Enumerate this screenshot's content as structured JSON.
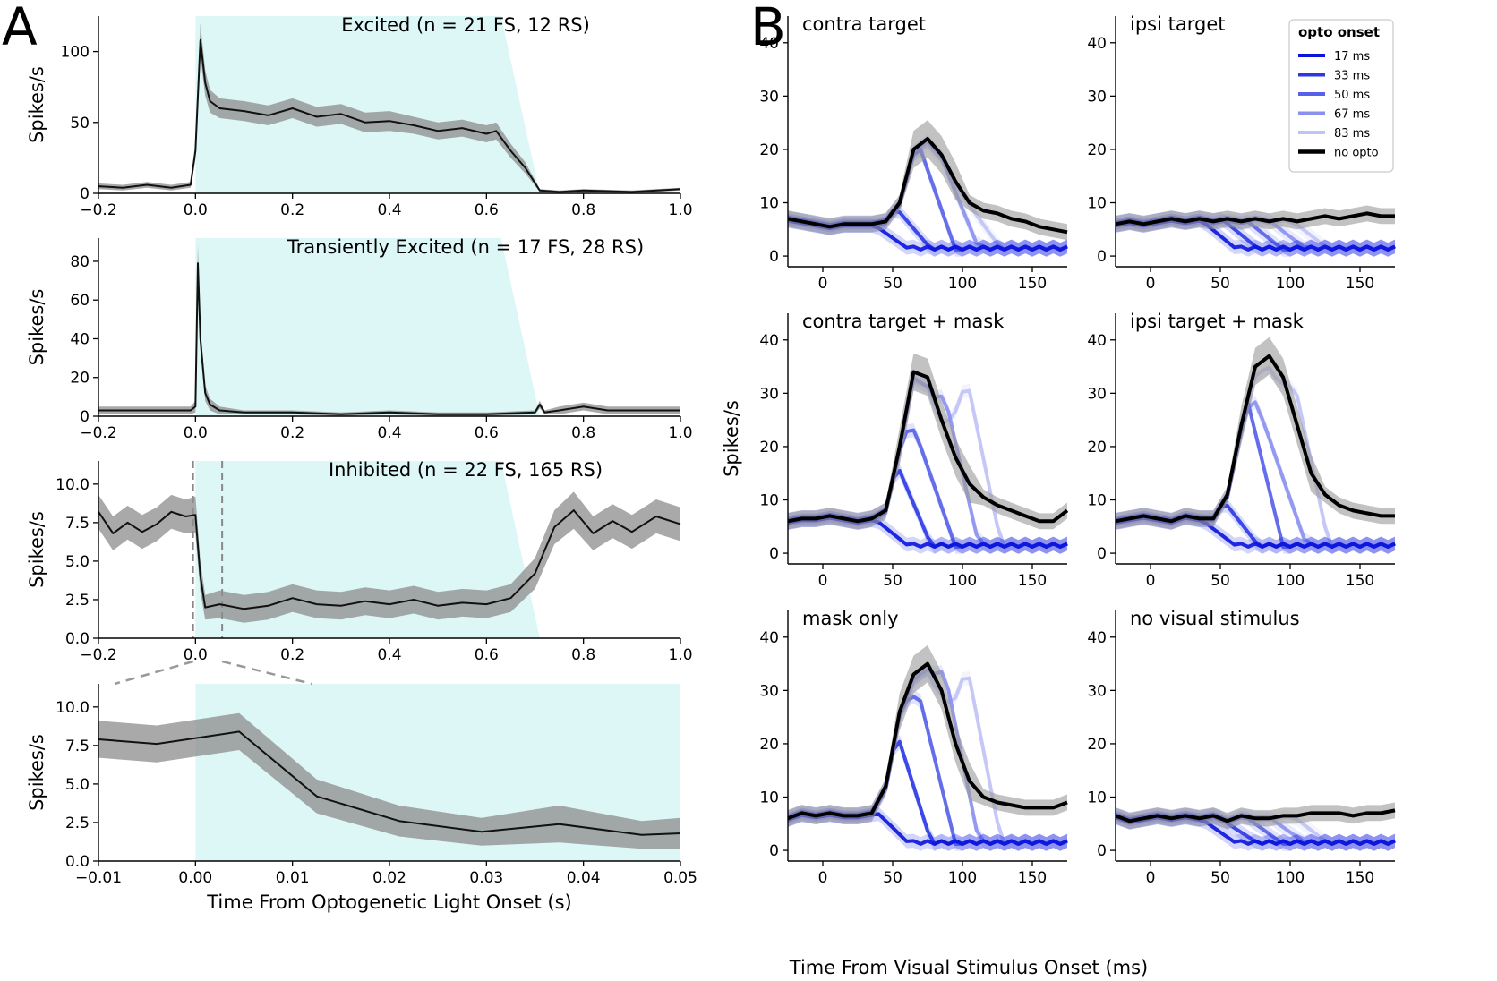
{
  "figure": {
    "panel_a_letter": "A",
    "panel_b_letter": "B"
  },
  "colors": {
    "shade": "#ddf7f7",
    "band": "#8c8c8c",
    "line": "#111111",
    "opto": [
      "#0a14dc",
      "#2b38e4",
      "#5660e8",
      "#8a90ee",
      "#c0c3f6"
    ]
  },
  "chart_data": [
    {
      "id": "a1",
      "type": "line",
      "title": "Excited (n = 21 FS, 12 RS)",
      "xlabel": "",
      "ylabel": "Spikes/s",
      "xlim": [
        -0.2,
        1.0
      ],
      "ylim": [
        0,
        125
      ],
      "xticks": [
        -0.2,
        0.0,
        0.2,
        0.4,
        0.6,
        0.8,
        1.0
      ],
      "xticklabels": [
        "−0.2",
        "0.0",
        "0.2",
        "0.4",
        "0.6",
        "0.8",
        "1.0"
      ],
      "yticks": [
        0,
        50,
        100
      ],
      "yticklabels": [
        "0",
        "50",
        "100"
      ],
      "shade": {
        "start": 0.0,
        "plateau_end": 0.63,
        "end": 0.71
      },
      "series": [
        {
          "name": "mean",
          "x": [
            -0.2,
            -0.15,
            -0.1,
            -0.05,
            -0.01,
            0.0,
            0.01,
            0.02,
            0.03,
            0.05,
            0.1,
            0.15,
            0.2,
            0.25,
            0.3,
            0.35,
            0.4,
            0.45,
            0.5,
            0.55,
            0.6,
            0.62,
            0.65,
            0.68,
            0.71,
            0.75,
            0.8,
            0.9,
            1.0
          ],
          "y": [
            5,
            4,
            6,
            4,
            6,
            30,
            108,
            78,
            65,
            60,
            58,
            55,
            60,
            54,
            56,
            50,
            51,
            48,
            44,
            46,
            42,
            44,
            30,
            18,
            2,
            1,
            2,
            1,
            3
          ],
          "err": [
            2,
            2,
            2,
            2,
            2,
            6,
            12,
            9,
            8,
            7,
            7,
            7,
            7,
            7,
            7,
            7,
            7,
            6,
            6,
            6,
            6,
            6,
            5,
            4,
            1,
            1,
            1,
            1,
            1
          ]
        }
      ]
    },
    {
      "id": "a2",
      "type": "line",
      "title": "Transiently Excited (n = 17 FS, 28 RS)",
      "xlabel": "",
      "ylabel": "Spikes/s",
      "xlim": [
        -0.2,
        1.0
      ],
      "ylim": [
        0,
        92
      ],
      "xticks": [
        -0.2,
        0.0,
        0.2,
        0.4,
        0.6,
        0.8,
        1.0
      ],
      "xticklabels": [
        "−0.2",
        "0.0",
        "0.2",
        "0.4",
        "0.6",
        "0.8",
        "1.0"
      ],
      "yticks": [
        0,
        20,
        40,
        60,
        80
      ],
      "yticklabels": [
        "0",
        "20",
        "40",
        "60",
        "80"
      ],
      "shade": {
        "start": 0.0,
        "plateau_end": 0.63,
        "end": 0.71
      },
      "series": [
        {
          "name": "mean",
          "x": [
            -0.2,
            -0.1,
            -0.01,
            0.0,
            0.005,
            0.01,
            0.02,
            0.03,
            0.05,
            0.1,
            0.2,
            0.3,
            0.4,
            0.5,
            0.6,
            0.7,
            0.71,
            0.72,
            0.75,
            0.8,
            0.85,
            0.9,
            1.0
          ],
          "y": [
            3,
            3,
            3,
            5,
            79,
            40,
            12,
            6,
            3,
            2,
            2,
            1,
            2,
            1,
            1,
            2,
            6,
            2,
            3,
            5,
            3,
            3,
            3
          ],
          "err": [
            2,
            2,
            2,
            3,
            10,
            6,
            4,
            3,
            2,
            1,
            1,
            1,
            1,
            1,
            1,
            1,
            2,
            1,
            2,
            2,
            2,
            2,
            2
          ]
        }
      ]
    },
    {
      "id": "a3",
      "type": "line",
      "title": "Inhibited (n = 22 FS, 165 RS)",
      "xlabel": "",
      "ylabel": "Spikes/s",
      "xlim": [
        -0.2,
        1.0
      ],
      "ylim": [
        0,
        11.5
      ],
      "xticks": [
        -0.2,
        0.0,
        0.2,
        0.4,
        0.6,
        0.8,
        1.0
      ],
      "xticklabels": [
        "−0.2",
        "0.0",
        "0.2",
        "0.4",
        "0.6",
        "0.8",
        "1.0"
      ],
      "yticks": [
        0,
        2.5,
        5.0,
        7.5,
        10.0
      ],
      "yticklabels": [
        "0.0",
        "2.5",
        "5.0",
        "7.5",
        "10.0"
      ],
      "shade": {
        "start": 0.0,
        "plateau_end": 0.63,
        "end": 0.71
      },
      "zoom_markers": [
        -0.005,
        0.055
      ],
      "series": [
        {
          "name": "mean",
          "x": [
            -0.2,
            -0.17,
            -0.14,
            -0.11,
            -0.08,
            -0.05,
            -0.02,
            0.0,
            0.01,
            0.02,
            0.05,
            0.1,
            0.15,
            0.2,
            0.25,
            0.3,
            0.35,
            0.4,
            0.45,
            0.5,
            0.55,
            0.6,
            0.65,
            0.7,
            0.74,
            0.78,
            0.82,
            0.86,
            0.9,
            0.95,
            1.0
          ],
          "y": [
            8.2,
            6.8,
            7.5,
            6.9,
            7.4,
            8.2,
            7.9,
            8.0,
            4.0,
            2.0,
            2.2,
            1.9,
            2.1,
            2.6,
            2.2,
            2.1,
            2.4,
            2.2,
            2.5,
            2.1,
            2.3,
            2.2,
            2.6,
            4.2,
            7.2,
            8.3,
            6.8,
            7.6,
            6.9,
            7.9,
            7.4
          ],
          "err": [
            1.1,
            1.1,
            1.1,
            1.1,
            1.1,
            1.1,
            1.1,
            1.2,
            1.0,
            0.8,
            0.9,
            0.9,
            0.9,
            0.9,
            0.9,
            0.9,
            0.9,
            0.9,
            0.9,
            0.9,
            0.9,
            0.9,
            0.9,
            1.0,
            1.1,
            1.2,
            1.1,
            1.1,
            1.1,
            1.1,
            1.1
          ]
        }
      ]
    },
    {
      "id": "a4",
      "type": "line",
      "title": "",
      "xlabel": "Time From Optogenetic Light Onset (s)",
      "ylabel": "Spikes/s",
      "xlim": [
        -0.01,
        0.05
      ],
      "ylim": [
        0,
        11.5
      ],
      "xticks": [
        -0.01,
        0.0,
        0.01,
        0.02,
        0.03,
        0.04,
        0.05
      ],
      "xticklabels": [
        "−0.01",
        "0.00",
        "0.01",
        "0.02",
        "0.03",
        "0.04",
        "0.05"
      ],
      "yticks": [
        0,
        2.5,
        5.0,
        7.5,
        10.0
      ],
      "yticklabels": [
        "0.0",
        "2.5",
        "5.0",
        "7.5",
        "10.0"
      ],
      "shade": {
        "start": 0.0,
        "plateau_end": 0.05,
        "end": 0.05
      },
      "series": [
        {
          "name": "mean",
          "x": [
            -0.01,
            -0.004,
            0.0045,
            0.0125,
            0.021,
            0.0295,
            0.0375,
            0.046,
            0.05
          ],
          "y": [
            7.9,
            7.6,
            8.4,
            4.2,
            2.6,
            1.9,
            2.4,
            1.7,
            1.8
          ],
          "err": [
            1.2,
            1.2,
            1.2,
            1.1,
            1.0,
            0.9,
            1.2,
            0.9,
            1.0
          ]
        }
      ]
    },
    {
      "id": "b1",
      "type": "line",
      "title": "contra target",
      "ylabel": "",
      "xlabel": "",
      "xlim": [
        -25,
        175
      ],
      "ylim": [
        -2,
        45
      ],
      "xticks": [
        0,
        50,
        100,
        150
      ],
      "xticklabels": [
        "0",
        "50",
        "100",
        "150"
      ],
      "yticks": [
        0,
        10,
        20,
        30,
        40
      ],
      "yticklabels": [
        "0",
        "10",
        "20",
        "30",
        "40"
      ],
      "no_opto": {
        "x": [
          -25,
          -15,
          -5,
          5,
          15,
          25,
          35,
          45,
          55,
          65,
          75,
          85,
          95,
          105,
          115,
          125,
          135,
          145,
          155,
          165,
          175
        ],
        "y": [
          7,
          6.5,
          6,
          5.5,
          6,
          6,
          6,
          6.5,
          10,
          20,
          22,
          19,
          14,
          10,
          8.5,
          8,
          7,
          6.5,
          5.5,
          5,
          4.5
        ]
      },
      "opto": [
        {
          "name": "17 ms",
          "cut": 17,
          "peak": 0
        },
        {
          "name": "33 ms",
          "cut": 33,
          "peak": 0
        },
        {
          "name": "50 ms",
          "cut": 50,
          "peak": 0
        },
        {
          "name": "67 ms",
          "cut": 67,
          "peak": 0
        },
        {
          "name": "83 ms",
          "cut": 83,
          "peak": 0
        }
      ]
    },
    {
      "id": "b2",
      "type": "line",
      "title": "ipsi target",
      "ylabel": "",
      "xlabel": "",
      "xlim": [
        -25,
        175
      ],
      "ylim": [
        -2,
        45
      ],
      "xticks": [
        0,
        50,
        100,
        150
      ],
      "xticklabels": [
        "0",
        "50",
        "100",
        "150"
      ],
      "yticks": [
        0,
        10,
        20,
        30,
        40
      ],
      "yticklabels": [
        "0",
        "10",
        "20",
        "30",
        "40"
      ],
      "no_opto": {
        "x": [
          -25,
          -15,
          -5,
          5,
          15,
          25,
          35,
          45,
          55,
          65,
          75,
          85,
          95,
          105,
          115,
          125,
          135,
          145,
          155,
          165,
          175
        ],
        "y": [
          6,
          6.5,
          6,
          6.5,
          7,
          6.5,
          7,
          6.5,
          7,
          6.5,
          7,
          6.5,
          7,
          6.5,
          7,
          7.5,
          7,
          7.5,
          8,
          7.5,
          7.5
        ]
      },
      "opto": [
        {
          "name": "17 ms",
          "cut": 17,
          "peak": 0
        },
        {
          "name": "33 ms",
          "cut": 33,
          "peak": 0
        },
        {
          "name": "50 ms",
          "cut": 50,
          "peak": 0
        },
        {
          "name": "67 ms",
          "cut": 67,
          "peak": 0
        },
        {
          "name": "83 ms",
          "cut": 83,
          "peak": 0
        }
      ]
    },
    {
      "id": "b3",
      "type": "line",
      "title": "contra target + mask",
      "ylabel": "Spikes/s",
      "xlabel": "",
      "xlim": [
        -25,
        175
      ],
      "ylim": [
        -2,
        45
      ],
      "xticks": [
        0,
        50,
        100,
        150
      ],
      "xticklabels": [
        "0",
        "50",
        "100",
        "150"
      ],
      "yticks": [
        0,
        10,
        20,
        30,
        40
      ],
      "yticklabels": [
        "0",
        "10",
        "20",
        "30",
        "40"
      ],
      "no_opto": {
        "x": [
          -25,
          -15,
          -5,
          5,
          15,
          25,
          35,
          45,
          55,
          65,
          75,
          85,
          95,
          105,
          115,
          125,
          135,
          145,
          155,
          165,
          175
        ],
        "y": [
          6,
          6.5,
          6.5,
          7,
          6.5,
          6,
          6.5,
          8,
          20,
          34,
          33,
          25,
          18,
          13,
          10.5,
          9,
          8,
          7,
          6,
          6,
          8
        ]
      },
      "opto": [
        {
          "name": "17 ms",
          "cut": 17,
          "peak": 0
        },
        {
          "name": "33 ms",
          "cut": 33,
          "peak": 0
        },
        {
          "name": "50 ms",
          "cut": 50,
          "peak": 20
        },
        {
          "name": "67 ms",
          "cut": 67,
          "peak": 30
        },
        {
          "name": "83 ms",
          "cut": 83,
          "peak": 33
        }
      ]
    },
    {
      "id": "b4",
      "type": "line",
      "title": "ipsi target + mask",
      "ylabel": "",
      "xlabel": "",
      "xlim": [
        -25,
        175
      ],
      "ylim": [
        -2,
        45
      ],
      "xticks": [
        0,
        50,
        100,
        150
      ],
      "xticklabels": [
        "0",
        "50",
        "100",
        "150"
      ],
      "yticks": [
        0,
        10,
        20,
        30,
        40
      ],
      "yticklabels": [
        "0",
        "10",
        "20",
        "30",
        "40"
      ],
      "no_opto": {
        "x": [
          -25,
          -15,
          -5,
          5,
          15,
          25,
          35,
          45,
          55,
          65,
          75,
          85,
          95,
          105,
          115,
          125,
          135,
          145,
          155,
          165,
          175
        ],
        "y": [
          6,
          6.5,
          7,
          6.5,
          6,
          7,
          6.5,
          6.5,
          11,
          24,
          35,
          37,
          33,
          24,
          15,
          11,
          9,
          8,
          7.5,
          7,
          7
        ]
      },
      "opto": [
        {
          "name": "17 ms",
          "cut": 17,
          "peak": 0
        },
        {
          "name": "33 ms",
          "cut": 33,
          "peak": 0
        },
        {
          "name": "50 ms",
          "cut": 50,
          "peak": 0
        },
        {
          "name": "67 ms",
          "cut": 67,
          "peak": 20
        },
        {
          "name": "83 ms",
          "cut": 83,
          "peak": 32
        }
      ]
    },
    {
      "id": "b5",
      "type": "line",
      "title": "mask only",
      "ylabel": "",
      "xlabel": "",
      "xlim": [
        -25,
        175
      ],
      "ylim": [
        -2,
        45
      ],
      "xticks": [
        0,
        50,
        100,
        150
      ],
      "xticklabels": [
        "0",
        "50",
        "100",
        "150"
      ],
      "yticks": [
        0,
        10,
        20,
        30,
        40
      ],
      "yticklabels": [
        "0",
        "10",
        "20",
        "30",
        "40"
      ],
      "no_opto": {
        "x": [
          -25,
          -15,
          -5,
          5,
          15,
          25,
          35,
          45,
          55,
          65,
          75,
          85,
          95,
          105,
          115,
          125,
          135,
          145,
          155,
          165,
          175
        ],
        "y": [
          6,
          7,
          6.5,
          7,
          6.5,
          6.5,
          7,
          12,
          26,
          33,
          35,
          30,
          20,
          13,
          10,
          9,
          8.5,
          8,
          8,
          8,
          9
        ]
      },
      "opto": [
        {
          "name": "17 ms",
          "cut": 17,
          "peak": 0
        },
        {
          "name": "33 ms",
          "cut": 33,
          "peak": 0
        },
        {
          "name": "50 ms",
          "cut": 50,
          "peak": 28
        },
        {
          "name": "67 ms",
          "cut": 67,
          "peak": 34
        },
        {
          "name": "83 ms",
          "cut": 83,
          "peak": 35
        }
      ]
    },
    {
      "id": "b6",
      "type": "line",
      "title": "no visual stimulus",
      "ylabel": "",
      "xlabel": "",
      "xlim": [
        -25,
        175
      ],
      "ylim": [
        -2,
        45
      ],
      "xticks": [
        0,
        50,
        100,
        150
      ],
      "xticklabels": [
        "0",
        "50",
        "100",
        "150"
      ],
      "yticks": [
        0,
        10,
        20,
        30,
        40
      ],
      "yticklabels": [
        "0",
        "10",
        "20",
        "30",
        "40"
      ],
      "no_opto": {
        "x": [
          -25,
          -15,
          -5,
          5,
          15,
          25,
          35,
          45,
          55,
          65,
          75,
          85,
          95,
          105,
          115,
          125,
          135,
          145,
          155,
          165,
          175
        ],
        "y": [
          6.5,
          5.5,
          6,
          6.5,
          6,
          6.5,
          6,
          6.5,
          5.5,
          6.5,
          6,
          6,
          6.5,
          6.5,
          7,
          7,
          7,
          6.5,
          7,
          7,
          7.5
        ]
      },
      "opto": [
        {
          "name": "17 ms",
          "cut": 17,
          "peak": 0
        },
        {
          "name": "33 ms",
          "cut": 33,
          "peak": 0
        },
        {
          "name": "50 ms",
          "cut": 50,
          "peak": 0
        },
        {
          "name": "67 ms",
          "cut": 67,
          "peak": 0
        },
        {
          "name": "83 ms",
          "cut": 83,
          "peak": 0
        }
      ]
    }
  ],
  "panel_b": {
    "xlabel": "Time From Visual Stimulus Onset (ms)",
    "legend": {
      "title": "opto onset",
      "items": [
        "17 ms",
        "33 ms",
        "50 ms",
        "67 ms",
        "83 ms",
        "no opto"
      ]
    }
  }
}
